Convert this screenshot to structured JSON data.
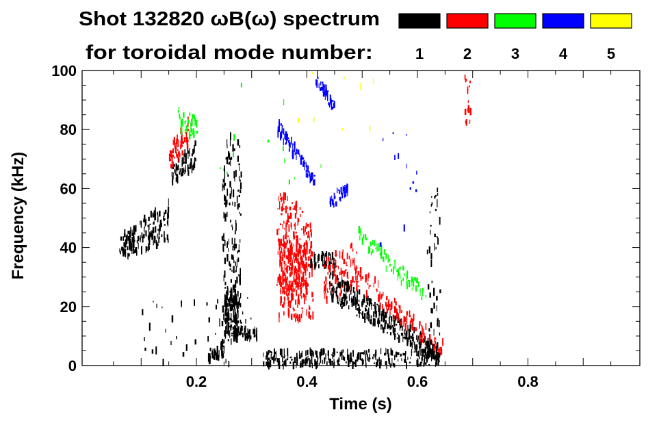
{
  "chart_data": {
    "type": "heatmap",
    "title": "Shot 132820 ωB(ω) spectrum",
    "subtitle": "for toroidal mode number:",
    "xlabel": "Time (s)",
    "ylabel": "Frequency (kHz)",
    "xlim": [
      0,
      1.0
    ],
    "ylim": [
      0,
      100
    ],
    "xticks": [
      0.2,
      0.4,
      0.6,
      0.8
    ],
    "xtick_labels": [
      "0.2",
      "0.4",
      "0.6",
      "0.8"
    ],
    "yticks": [
      0,
      20,
      40,
      60,
      80,
      100
    ],
    "ytick_labels": [
      "0",
      "20",
      "40",
      "60",
      "80",
      "100"
    ],
    "legend": [
      {
        "label": "1",
        "color": "#000000"
      },
      {
        "label": "2",
        "color": "#ff0000"
      },
      {
        "label": "3",
        "color": "#00ff00"
      },
      {
        "label": "4",
        "color": "#0000ff"
      },
      {
        "label": "5",
        "color": "#ffff00"
      }
    ],
    "features": [
      {
        "mode": 1,
        "t": [
          0.06,
          0.15
        ],
        "f": [
          36,
          44
        ],
        "f_end": [
          42,
          56
        ],
        "n": 160
      },
      {
        "mode": 1,
        "t": [
          0.155,
          0.198
        ],
        "f": [
          62,
          68
        ],
        "f_end": [
          66,
          76
        ],
        "n": 70
      },
      {
        "mode": 2,
        "t": [
          0.15,
          0.185
        ],
        "f": [
          66,
          74
        ],
        "f_end": [
          74,
          84
        ],
        "n": 60
      },
      {
        "mode": 3,
        "t": [
          0.165,
          0.2
        ],
        "f": [
          80,
          88
        ],
        "f_end": [
          76,
          84
        ],
        "n": 45
      },
      {
        "mode": 1,
        "t": [
          0.245,
          0.28
        ],
        "f": [
          8,
          78
        ],
        "f_end": [
          8,
          78
        ],
        "n": 160
      },
      {
        "mode": 1,
        "t": [
          0.25,
          0.275
        ],
        "f": [
          10,
          25
        ],
        "f_end": [
          10,
          25
        ],
        "n": 120
      },
      {
        "mode": 1,
        "t": [
          0.22,
          0.25
        ],
        "f": [
          1,
          3
        ],
        "f_end": [
          3,
          9
        ],
        "n": 50
      },
      {
        "mode": 1,
        "t": [
          0.27,
          0.31
        ],
        "f": [
          9,
          13
        ],
        "f_end": [
          9,
          12
        ],
        "n": 50
      },
      {
        "mode": 2,
        "t": [
          0.345,
          0.41
        ],
        "f": [
          15,
          60
        ],
        "f_end": [
          15,
          50
        ],
        "n": 220
      },
      {
        "mode": 2,
        "t": [
          0.35,
          0.4
        ],
        "f": [
          25,
          45
        ],
        "f_end": [
          22,
          42
        ],
        "n": 200
      },
      {
        "mode": 4,
        "t": [
          0.345,
          0.415
        ],
        "f": [
          79,
          84
        ],
        "f_end": [
          60,
          64
        ],
        "n": 70
      },
      {
        "mode": 4,
        "t": [
          0.415,
          0.45
        ],
        "f": [
          96,
          100
        ],
        "f_end": [
          85,
          89
        ],
        "n": 40
      },
      {
        "mode": 4,
        "t": [
          0.44,
          0.475
        ],
        "f": [
          53,
          57
        ],
        "f_end": [
          58,
          63
        ],
        "n": 35
      },
      {
        "mode": 1,
        "t": [
          0.405,
          0.45
        ],
        "f": [
          33,
          38
        ],
        "f_end": [
          33,
          38
        ],
        "n": 50
      },
      {
        "mode": 2,
        "t": [
          0.43,
          0.49
        ],
        "f": [
          22,
          36
        ],
        "f_end": [
          25,
          42
        ],
        "n": 90
      },
      {
        "mode": 1,
        "t": [
          0.44,
          0.64
        ],
        "f": [
          22,
          32
        ],
        "f_end": [
          1,
          6
        ],
        "n": 320
      },
      {
        "mode": 2,
        "t": [
          0.47,
          0.645
        ],
        "f": [
          30,
          38
        ],
        "f_end": [
          2,
          8
        ],
        "n": 120
      },
      {
        "mode": 3,
        "t": [
          0.49,
          0.615
        ],
        "f": [
          42,
          47
        ],
        "f_end": [
          20,
          26
        ],
        "n": 70
      },
      {
        "mode": 1,
        "t": [
          0.32,
          0.64
        ],
        "f": [
          0,
          5
        ],
        "f_end": [
          0,
          5
        ],
        "n": 260
      },
      {
        "mode": 2,
        "t": [
          0.685,
          0.695
        ],
        "f": [
          82,
          98
        ],
        "f_end": [
          82,
          98
        ],
        "n": 15
      },
      {
        "mode": 1,
        "t": [
          0.615,
          0.64
        ],
        "f": [
          10,
          60
        ],
        "f_end": [
          10,
          60
        ],
        "n": 40
      },
      {
        "mode": 1,
        "t": [
          0.1,
          0.3
        ],
        "f": [
          0,
          25
        ],
        "f_end": [
          0,
          25
        ],
        "n": 40
      },
      {
        "mode": 5,
        "t": [
          0.38,
          0.52
        ],
        "f": [
          80,
          100
        ],
        "f_end": [
          80,
          100
        ],
        "n": 8
      },
      {
        "mode": 3,
        "t": [
          0.24,
          0.45
        ],
        "f": [
          60,
          100
        ],
        "f_end": [
          60,
          100
        ],
        "n": 12
      },
      {
        "mode": 4,
        "t": [
          0.5,
          0.6
        ],
        "f": [
          40,
          80
        ],
        "f_end": [
          40,
          80
        ],
        "n": 12
      }
    ]
  }
}
